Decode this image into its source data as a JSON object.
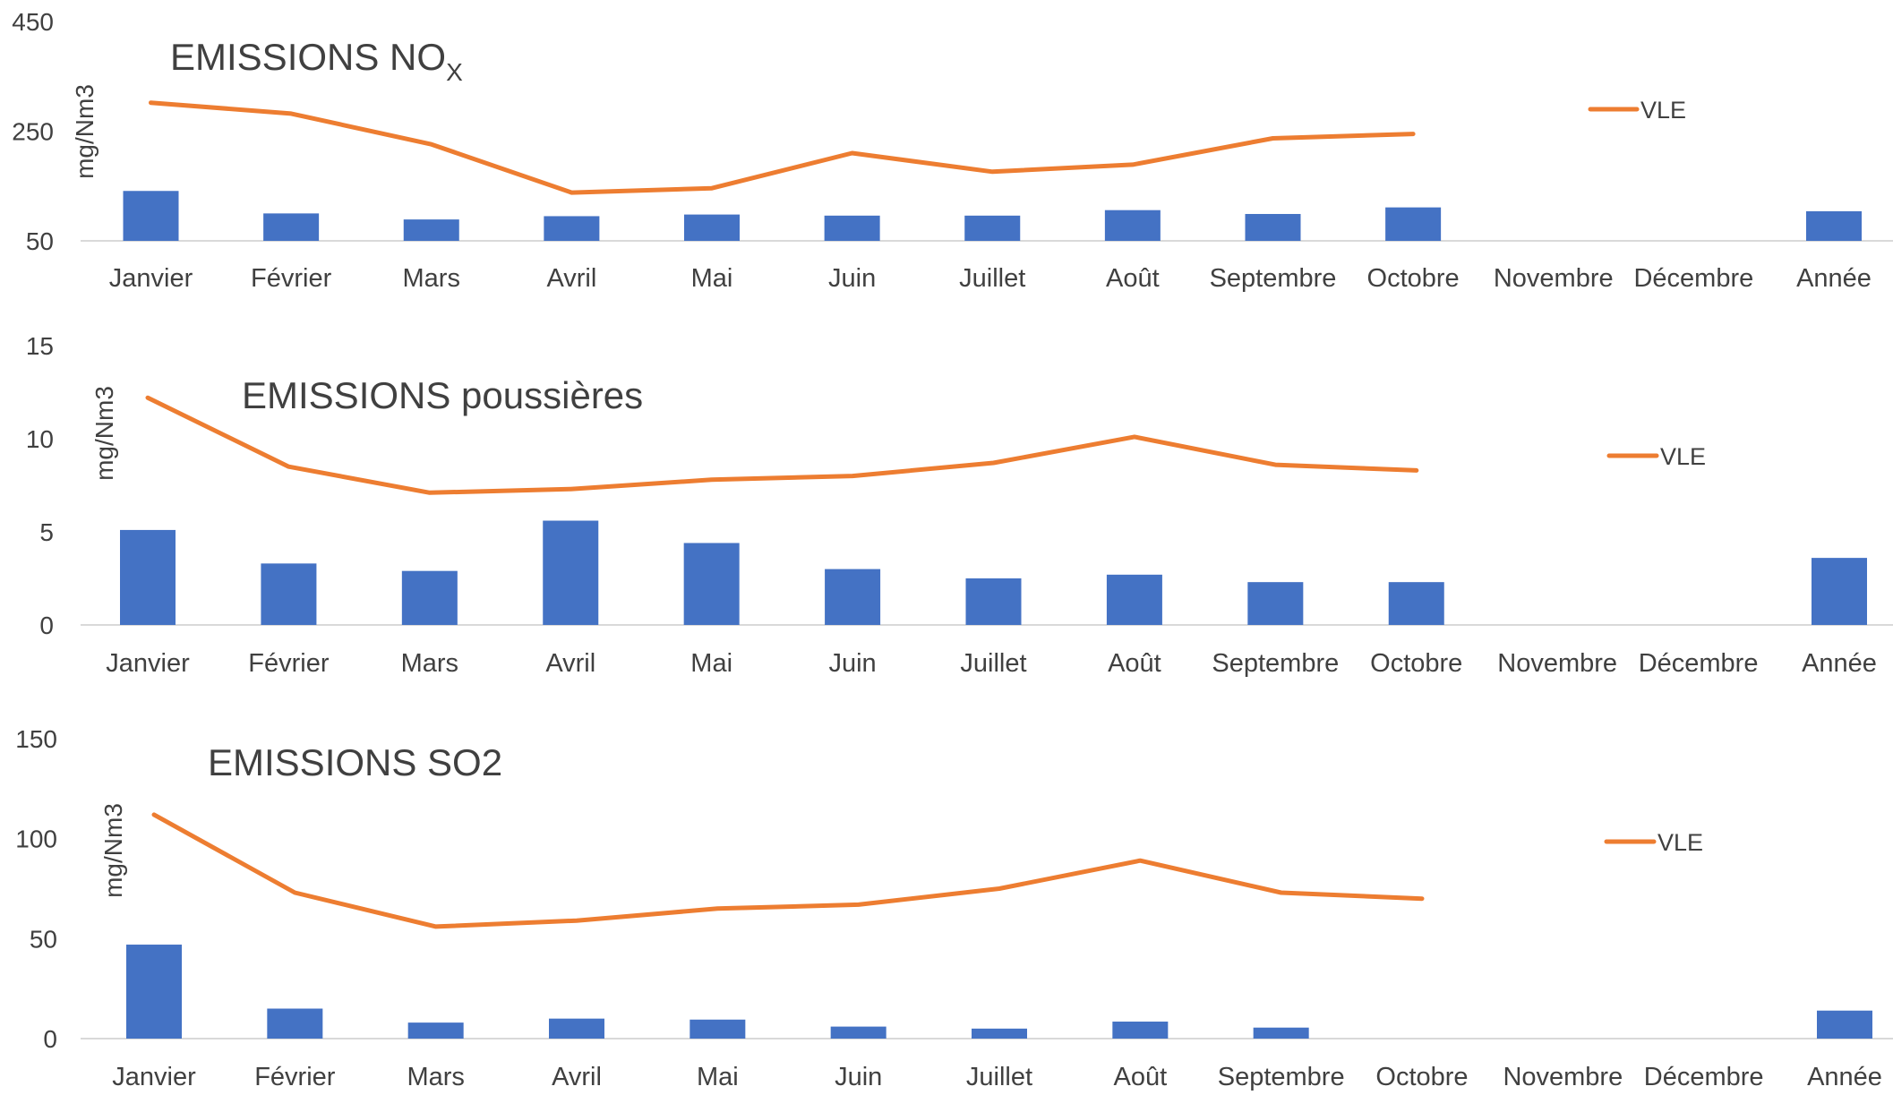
{
  "chart_data": [
    {
      "type": "bar+line",
      "title": "EMISSIONS NO",
      "title_subscript": "X",
      "ylabel": "mg/Nm3",
      "xlabel": "",
      "ylim": [
        50,
        450
      ],
      "yticks": [
        "450",
        "250",
        "50"
      ],
      "categories": [
        "Janvier",
        "Février",
        "Mars",
        "Avril",
        "Mai",
        "Juin",
        "Juillet",
        "Août",
        "Septembre",
        "Octobre",
        "Novembre",
        "Décembre",
        "Année"
      ],
      "series": [
        {
          "type": "bar",
          "values": [
            141,
            100,
            89,
            95,
            98,
            96,
            96,
            106,
            99,
            111,
            null,
            null,
            104
          ],
          "color": "#4472C4"
        },
        {
          "name": "VLE",
          "type": "line",
          "values": [
            302,
            282,
            226,
            138,
            146,
            210,
            176,
            189,
            237,
            245,
            null,
            null,
            null
          ],
          "color": "#ED7D31"
        }
      ],
      "legend": {
        "label": "VLE",
        "position": "right"
      },
      "grid": false
    },
    {
      "type": "bar+line",
      "title": "EMISSIONS poussières",
      "ylabel": "mg/Nm3",
      "xlabel": "",
      "ylim": [
        0,
        15
      ],
      "yticks": [
        "15",
        "10",
        "5",
        "0"
      ],
      "categories": [
        "Janvier",
        "Février",
        "Mars",
        "Avril",
        "Mai",
        "Juin",
        "Juillet",
        "Août",
        "Septembre",
        "Octobre",
        "Novembre",
        "Décembre",
        "Année"
      ],
      "series": [
        {
          "type": "bar",
          "values": [
            5.1,
            3.3,
            2.9,
            5.6,
            4.4,
            3.0,
            2.5,
            2.7,
            2.3,
            2.3,
            null,
            null,
            3.6
          ],
          "color": "#4472C4"
        },
        {
          "name": "VLE",
          "type": "line",
          "values": [
            12.2,
            8.5,
            7.1,
            7.3,
            7.8,
            8.0,
            8.7,
            10.1,
            8.6,
            8.3,
            null,
            null,
            null
          ],
          "color": "#ED7D31"
        }
      ],
      "legend": {
        "label": "VLE",
        "position": "right"
      },
      "grid": false
    },
    {
      "type": "bar+line",
      "title": "EMISSIONS SO2",
      "ylabel": "mg/Nm3",
      "xlabel": "",
      "ylim": [
        0,
        150
      ],
      "yticks": [
        "150",
        "100",
        "50",
        "0"
      ],
      "categories": [
        "Janvier",
        "Février",
        "Mars",
        "Avril",
        "Mai",
        "Juin",
        "Juillet",
        "Août",
        "Septembre",
        "Octobre",
        "Novembre",
        "Décembre",
        "Année"
      ],
      "series": [
        {
          "type": "bar",
          "values": [
            47,
            15,
            8,
            10,
            9.5,
            6,
            5,
            8.5,
            5.5,
            null,
            null,
            null,
            14
          ],
          "color": "#4472C4"
        },
        {
          "name": "VLE",
          "type": "line",
          "values": [
            112,
            73,
            56,
            59,
            65,
            67,
            75,
            89,
            73,
            70,
            null,
            null,
            null
          ],
          "color": "#ED7D31"
        }
      ],
      "legend": {
        "label": "VLE",
        "position": "right"
      },
      "grid": false
    }
  ]
}
